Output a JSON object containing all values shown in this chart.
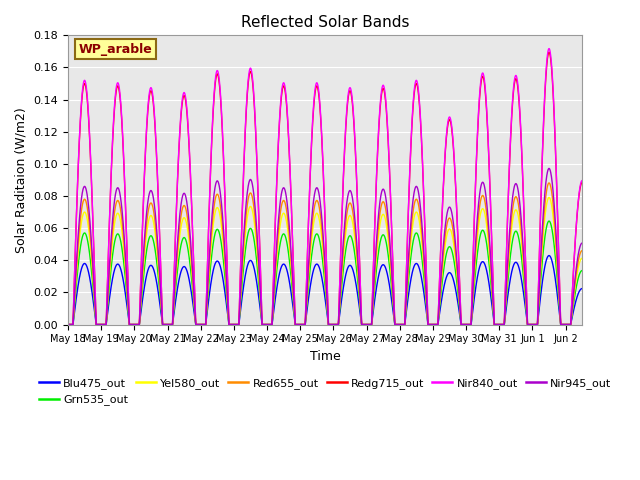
{
  "title": "Reflected Solar Bands",
  "xlabel": "Time",
  "ylabel": "Solar Raditaion (W/m2)",
  "annotation_text": "WP_arable",
  "annotation_color": "#8B0000",
  "annotation_bg": "#FFFF99",
  "annotation_border": "#8B6914",
  "ylim": [
    0,
    0.18
  ],
  "yticks": [
    0.0,
    0.02,
    0.04,
    0.06,
    0.08,
    0.1,
    0.12,
    0.14,
    0.16,
    0.18
  ],
  "date_labels": [
    "May 18",
    "May 19",
    "May 20",
    "May 21",
    "May 22",
    "May 23",
    "May 24",
    "May 25",
    "May 26",
    "May 27",
    "May 28",
    "May 29",
    "May 30",
    "May 31",
    "Jun 1",
    "Jun 2"
  ],
  "series": [
    {
      "name": "Blu475_out",
      "color": "#0000FF",
      "peak": 0.038
    },
    {
      "name": "Grn535_out",
      "color": "#00EE00",
      "peak": 0.057
    },
    {
      "name": "Yel580_out",
      "color": "#FFFF00",
      "peak": 0.07
    },
    {
      "name": "Red655_out",
      "color": "#FF8C00",
      "peak": 0.078
    },
    {
      "name": "Redg715_out",
      "color": "#FF0000",
      "peak": 0.15
    },
    {
      "name": "Nir840_out",
      "color": "#FF00FF",
      "peak": 0.152
    },
    {
      "name": "Nir945_out",
      "color": "#AA00CC",
      "peak": 0.086
    }
  ],
  "n_days": 16,
  "samples_per_day": 300,
  "background_color": "#E8E8E8",
  "grid_color": "#FFFFFF",
  "fig_bg": "#FFFFFF",
  "day_peak_mults": [
    1.0,
    0.99,
    0.97,
    0.95,
    1.04,
    1.05,
    0.99,
    0.99,
    0.97,
    0.98,
    1.0,
    0.85,
    1.03,
    1.02,
    1.13,
    0.59
  ]
}
